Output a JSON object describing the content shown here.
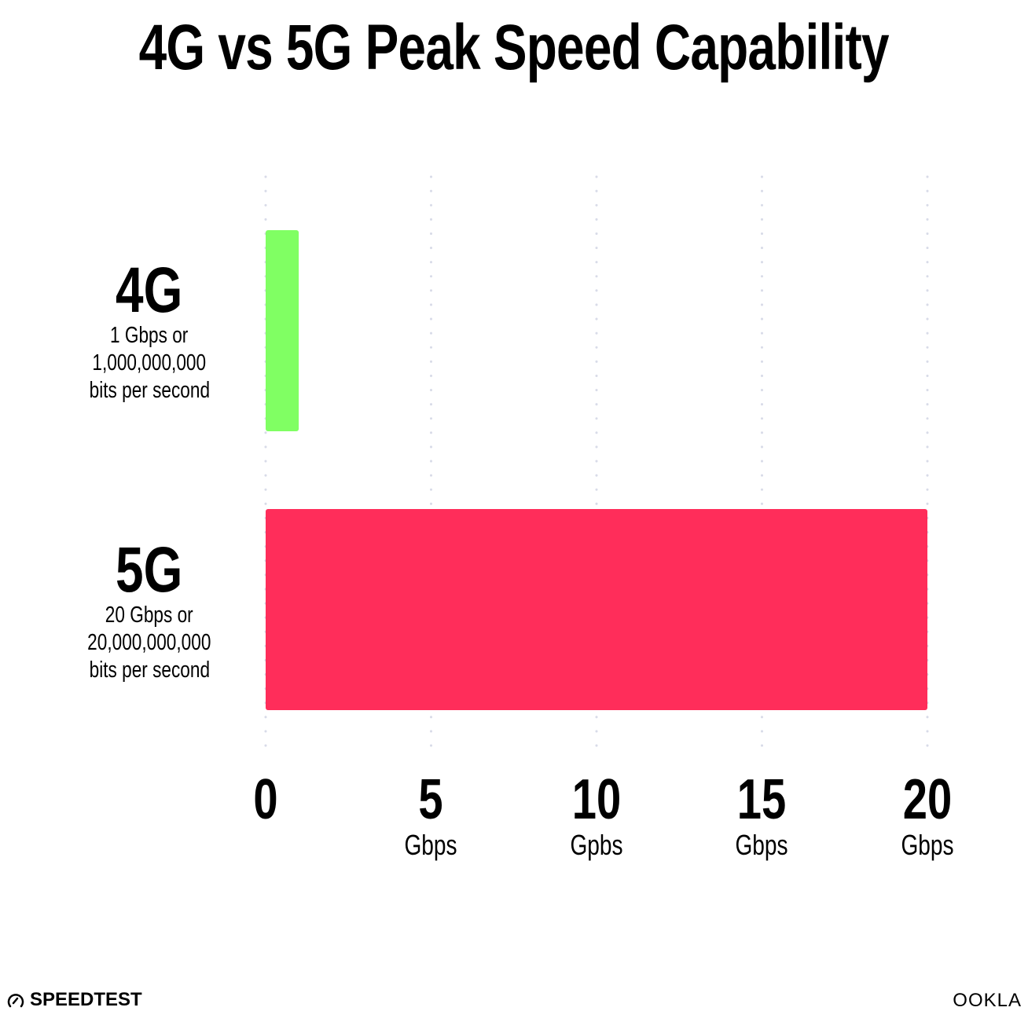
{
  "chart_data": {
    "type": "bar",
    "orientation": "horizontal",
    "title": "4G vs 5G Peak Speed Capability",
    "categories": [
      {
        "label": "4G",
        "description": [
          "1 Gbps or",
          "1,000,000,000",
          "bits per second"
        ]
      },
      {
        "label": "5G",
        "description": [
          "20 Gbps or",
          "20,000,000,000",
          "bits per second"
        ]
      }
    ],
    "values": [
      1,
      20
    ],
    "colors": [
      "#80ff63",
      "#ff2d5a"
    ],
    "xlim": [
      0,
      20
    ],
    "xticks": [
      {
        "value": 0,
        "label": "0",
        "unit": ""
      },
      {
        "value": 5,
        "label": "5",
        "unit": "Gbps"
      },
      {
        "value": 10,
        "label": "10",
        "unit": "Gpbs"
      },
      {
        "value": 15,
        "label": "15",
        "unit": "Gbps"
      },
      {
        "value": 20,
        "label": "20",
        "unit": "Gbps"
      }
    ],
    "grid": "vertical dotted"
  },
  "branding": {
    "left_logo": "SPEEDTEST",
    "right_logo": "OOKLA"
  }
}
